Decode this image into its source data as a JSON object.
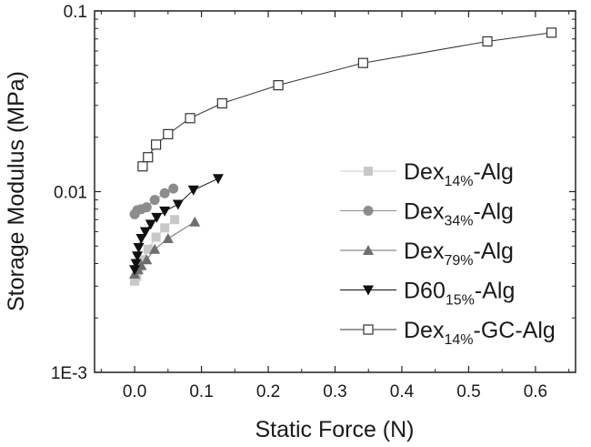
{
  "chart_data": {
    "type": "scatter",
    "title": "",
    "xlabel": "Static Force (N)",
    "ylabel": "Storage Modulus (MPa)",
    "xlim": [
      -0.06,
      0.66
    ],
    "ylim": [
      0.001,
      0.1
    ],
    "yscale": "log",
    "x_ticks": [
      0.0,
      0.1,
      0.2,
      0.3,
      0.4,
      0.5,
      0.6
    ],
    "x_tick_labels": [
      "0.0",
      "0.1",
      "0.2",
      "0.3",
      "0.4",
      "0.5",
      "0.6"
    ],
    "y_ticks": [
      0.001,
      0.01,
      0.1
    ],
    "y_tick_labels": [
      "1E-3",
      "0.01",
      "0.1"
    ],
    "grid": false,
    "legend_position": "right",
    "series": [
      {
        "name": "Dex14%-Alg",
        "label_main": "Dex",
        "label_sub": "14%",
        "label_tail": "-Alg",
        "marker": "square-filled",
        "color": "#c8c8c8",
        "x": [
          0.0,
          0.003,
          0.006,
          0.012,
          0.02,
          0.032,
          0.045,
          0.06
        ],
        "y": [
          0.0032,
          0.0034,
          0.0037,
          0.0042,
          0.0048,
          0.0056,
          0.0063,
          0.007
        ]
      },
      {
        "name": "Dex34%-Alg",
        "label_main": "Dex",
        "label_sub": "34%",
        "label_tail": "-Alg",
        "marker": "circle-filled",
        "color": "#8c8c8c",
        "x": [
          0.0,
          0.004,
          0.01,
          0.018,
          0.03,
          0.045,
          0.058
        ],
        "y": [
          0.0075,
          0.0079,
          0.008,
          0.0082,
          0.009,
          0.0098,
          0.0104
        ]
      },
      {
        "name": "Dex79%-Alg",
        "label_main": "Dex",
        "label_sub": "79%",
        "label_tail": "-Alg",
        "marker": "triangle-up-filled",
        "color": "#6e6e6e",
        "x": [
          0.0,
          0.005,
          0.01,
          0.018,
          0.03,
          0.05,
          0.09
        ],
        "y": [
          0.0035,
          0.0037,
          0.0039,
          0.0042,
          0.0048,
          0.0055,
          0.0068
        ]
      },
      {
        "name": "D6015%-Alg",
        "label_main": "D60",
        "label_sub": "15%",
        "label_tail": "-Alg",
        "marker": "triangle-down-filled",
        "color": "#111111",
        "x": [
          0.0,
          0.002,
          0.004,
          0.006,
          0.01,
          0.016,
          0.024,
          0.033,
          0.045,
          0.065,
          0.088,
          0.125
        ],
        "y": [
          0.0037,
          0.004,
          0.0044,
          0.0049,
          0.0055,
          0.006,
          0.0066,
          0.0072,
          0.0078,
          0.0085,
          0.0102,
          0.0118
        ]
      },
      {
        "name": "Dex14%-GC-Alg",
        "label_main": "Dex",
        "label_sub": "14%",
        "label_tail": "-GC-Alg",
        "marker": "square-open",
        "color": "#333333",
        "x": [
          0.012,
          0.02,
          0.032,
          0.05,
          0.083,
          0.131,
          0.215,
          0.342,
          0.528,
          0.624
        ],
        "y": [
          0.0138,
          0.0155,
          0.0182,
          0.0208,
          0.0255,
          0.0308,
          0.0388,
          0.0515,
          0.0678,
          0.0758
        ]
      }
    ]
  }
}
